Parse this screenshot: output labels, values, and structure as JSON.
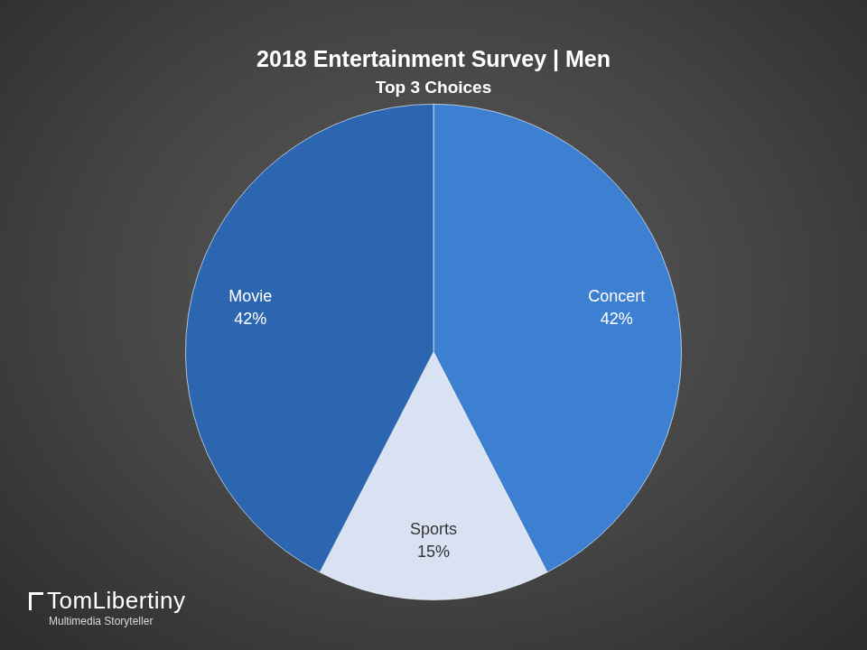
{
  "chart_data": {
    "type": "pie",
    "title": "2018 Entertainment Survey | Men",
    "subtitle": "Top 3 Choices",
    "categories": [
      "Concert",
      "Sports",
      "Movie"
    ],
    "values": [
      42,
      15,
      42
    ],
    "value_labels": [
      "42%",
      "15%",
      "42%"
    ],
    "colors": [
      "#3d7fd1",
      "#d9e2f3",
      "#2d66b0"
    ],
    "data_labels": true,
    "annotations": [
      "TomLibertiny",
      "Multimedia Storyteller"
    ]
  }
}
